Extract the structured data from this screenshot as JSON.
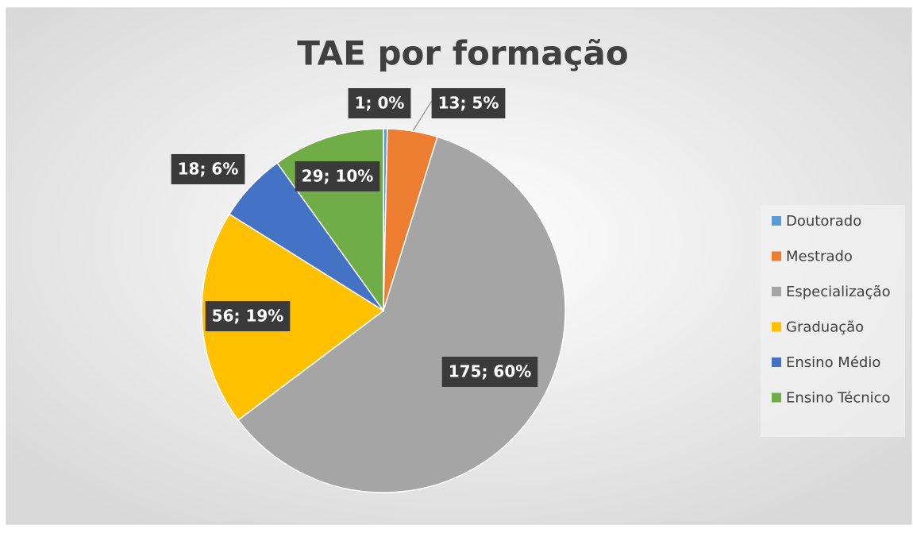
{
  "chart_data": {
    "type": "pie",
    "title": "TAE por formação",
    "categories": [
      "Doutorado",
      "Mestrado",
      "Especialização",
      "Graduação",
      "Ensino Médio",
      "Ensino Técnico"
    ],
    "values": [
      1,
      13,
      175,
      56,
      18,
      29
    ],
    "value_labels": [
      "1; 0%",
      "13; 5%",
      "175; 60%",
      "56; 19%",
      "18; 6%",
      "29; 10%"
    ],
    "colors": [
      "#5b9bd5",
      "#ed7d31",
      "#a5a5a5",
      "#ffc000",
      "#4472c4",
      "#70ad47"
    ],
    "legend": "right"
  }
}
